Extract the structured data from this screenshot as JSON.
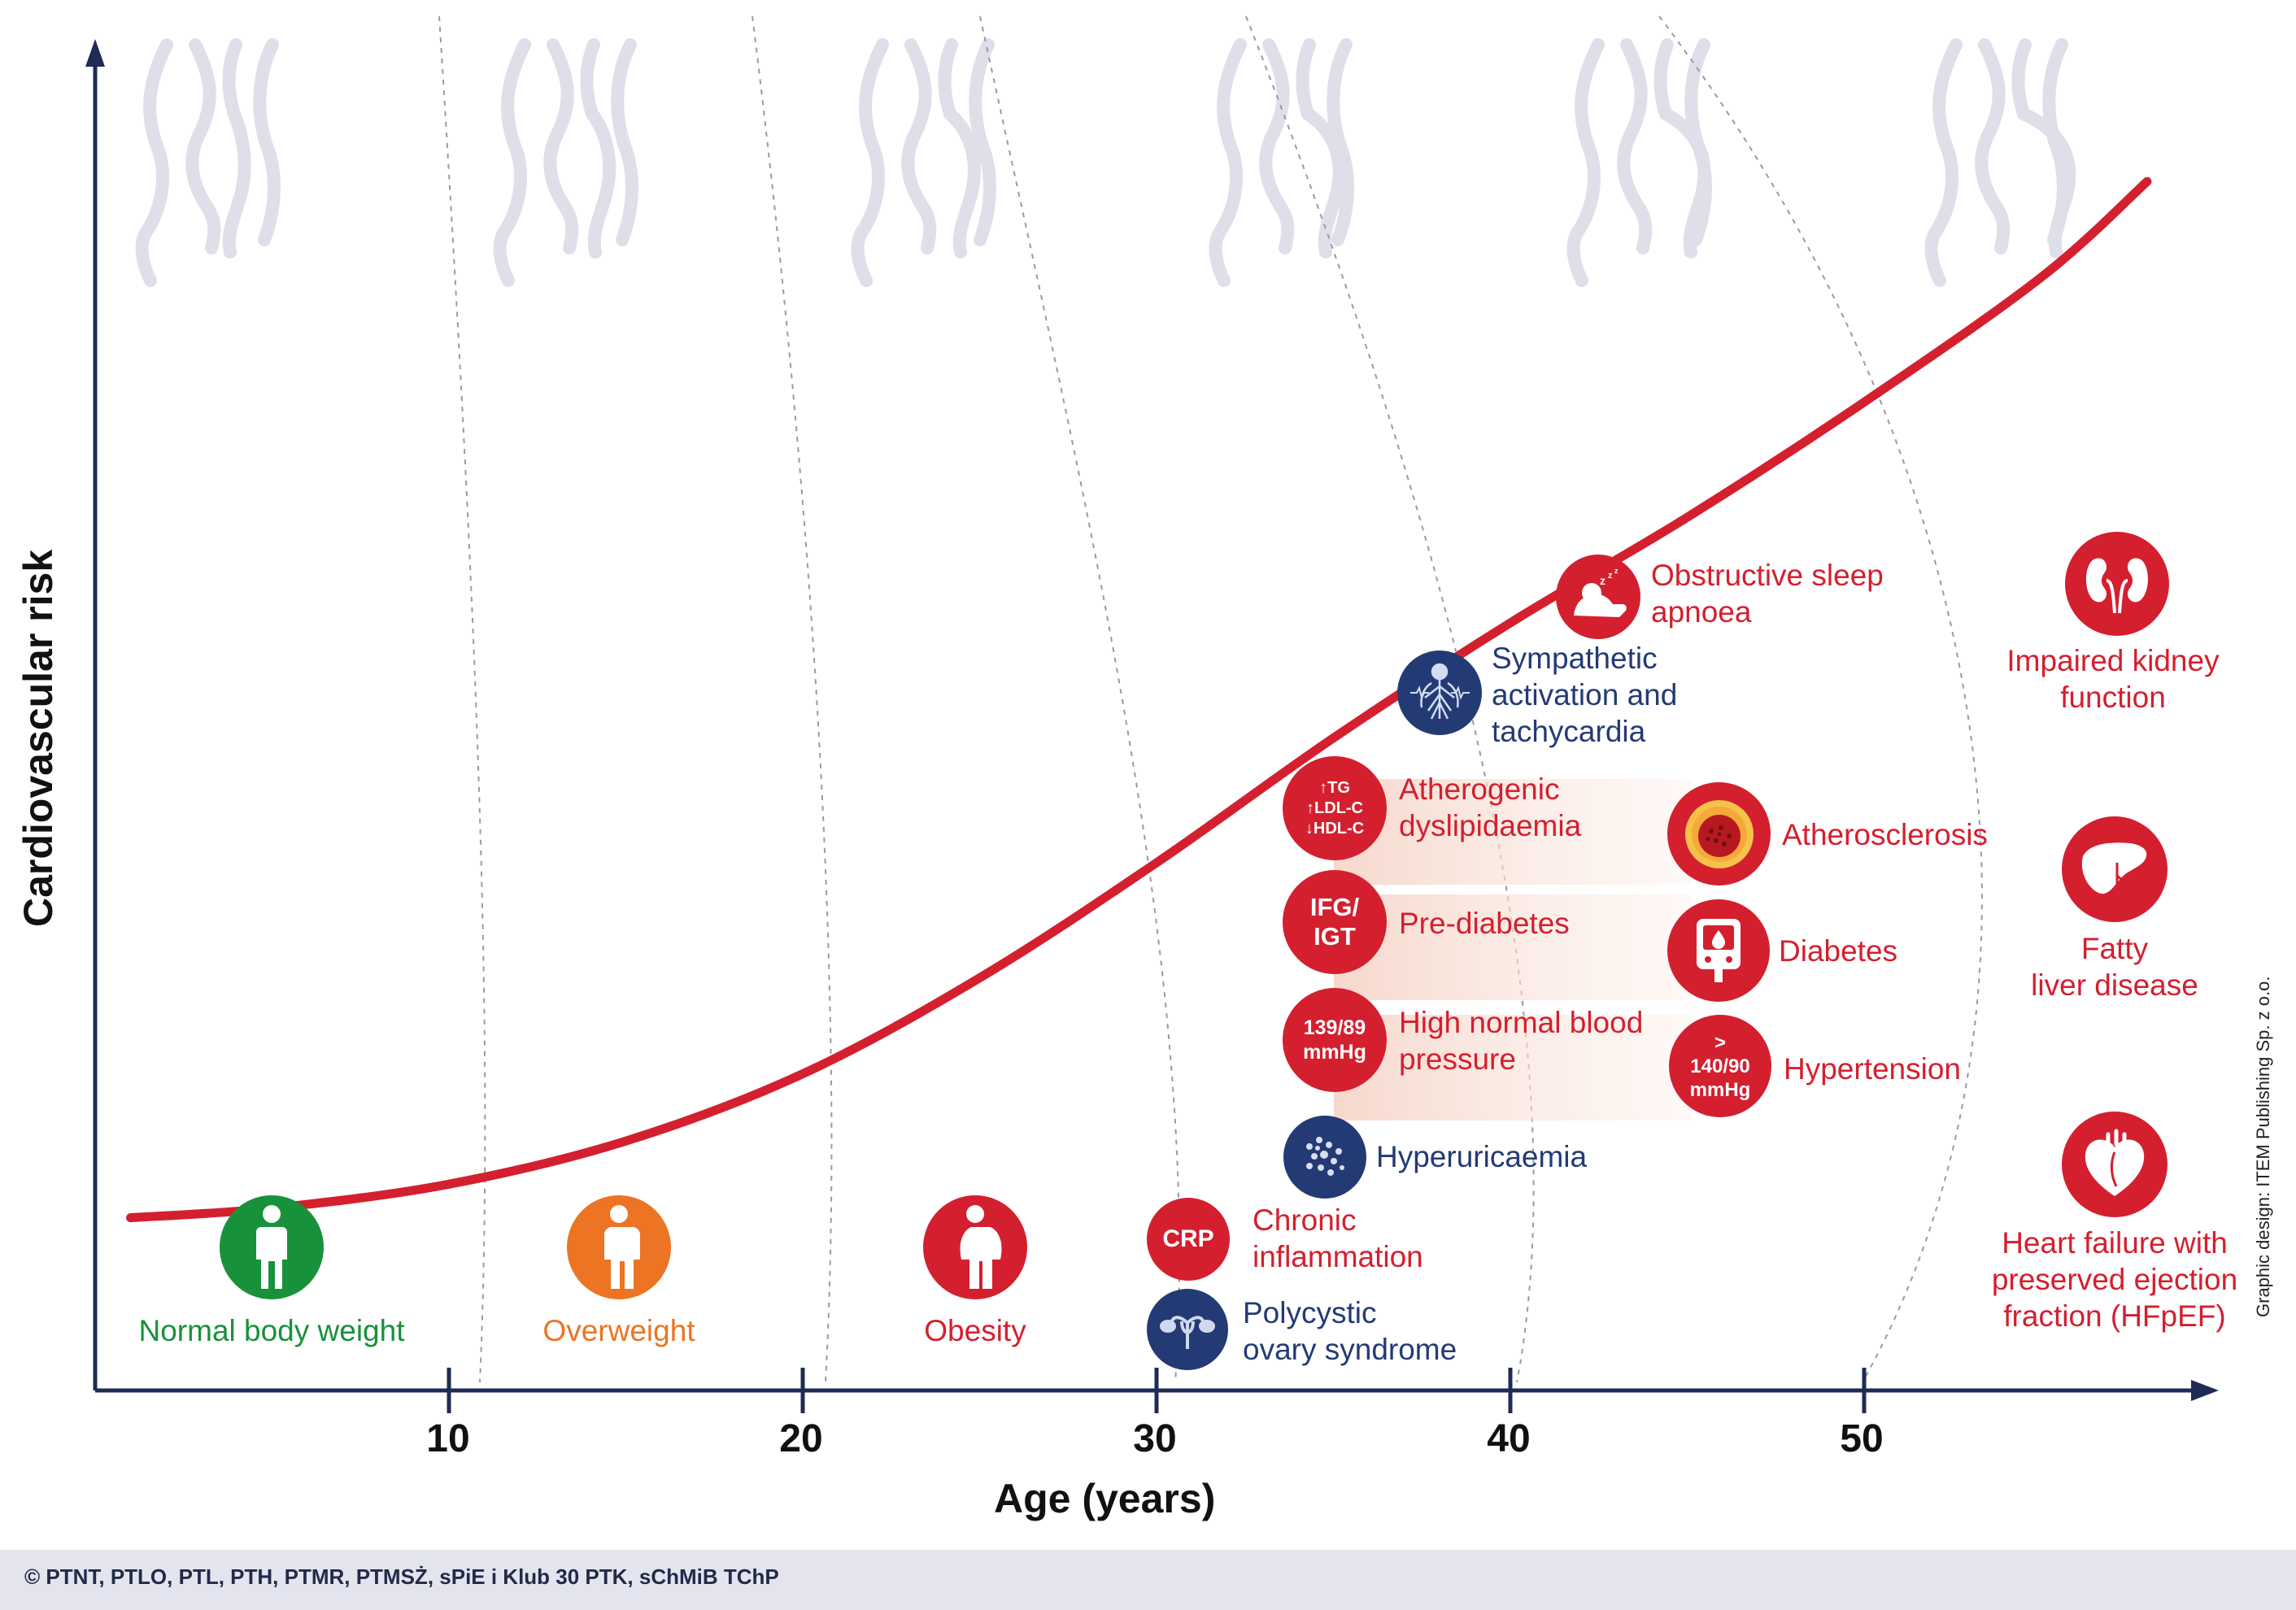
{
  "chart_data": {
    "type": "line",
    "ylabel": "Cardiovascular risk",
    "xlabel": "Age (years)",
    "x_ticks": [
      "10",
      "20",
      "30",
      "40",
      "50"
    ],
    "xlim": [
      0,
      58
    ],
    "series": [
      {
        "x": [
          1,
          5,
          10,
          15,
          20,
          25,
          30,
          35,
          40,
          45,
          50,
          55,
          58
        ],
        "values": [
          0.18,
          0.19,
          0.215,
          0.26,
          0.33,
          0.43,
          0.55,
          0.68,
          0.8,
          0.91,
          1.03,
          1.16,
          1.26
        ]
      }
    ],
    "colors": {
      "curve": "#d41f2f",
      "axis": "#1f2b55"
    }
  },
  "stages": [
    {
      "label": "Normal body weight",
      "color": "#18913b"
    },
    {
      "label": "Overweight",
      "color": "#ec7423"
    },
    {
      "label": "Obesity",
      "color": "#d41f2f"
    }
  ],
  "conditions": {
    "chronic_inflammation": {
      "badge": "CRP",
      "label": "Chronic\ninflammation"
    },
    "pcos": {
      "label": "Polycystic\novary syndrome",
      "icon": "ovary-icon"
    },
    "hyperuricaemia": {
      "label": "Hyperuricaemia",
      "icon": "crystals-icon"
    },
    "high_normal_bp": {
      "badge": "139/89\nmmHg",
      "label": "High normal blood\npressure"
    },
    "pre_diabetes": {
      "badge": "IFG/\nIGT",
      "label": "Pre-diabetes"
    },
    "dyslipidaemia": {
      "badge": "↑TG\n↑LDL-C\n↓HDL-C",
      "label": "Atherogenic\ndyslipidaemia"
    },
    "sympathetic": {
      "label": "Sympathetic\nactivation and\ntachycardia",
      "icon": "nervous-system-icon"
    },
    "sleep_apnoea": {
      "label": "Obstructive sleep\napnoea",
      "icon": "sleeping-person-icon"
    },
    "hypertension": {
      "badge": ">\n140/90\nmmHg",
      "label": "Hypertension"
    },
    "diabetes": {
      "label": "Diabetes",
      "icon": "glucometer-icon"
    },
    "atherosclerosis": {
      "label": "Atherosclerosis",
      "icon": "artery-plaque-icon"
    },
    "kidney": {
      "label": "Impaired kidney\nfunction",
      "icon": "kidneys-icon"
    },
    "fatty_liver": {
      "label": "Fatty\nliver disease",
      "icon": "liver-icon"
    },
    "hfpef": {
      "label": "Heart failure with\npreserved ejection\nfraction (HFpEF)",
      "icon": "heart-icon"
    }
  },
  "footer": {
    "copyright": "© PTNT, PTLO, PTL, PTH, PTMR, PTMSŻ, sPiE i Klub 30 PTK, sChMiB TChP",
    "credit": "Graphic design: ITEM Publishing Sp. z o.o."
  },
  "colors": {
    "red": "#d41f2f",
    "navy": "#233a75",
    "silhouette": "#dedfe8",
    "band": "#f6d6ca"
  }
}
